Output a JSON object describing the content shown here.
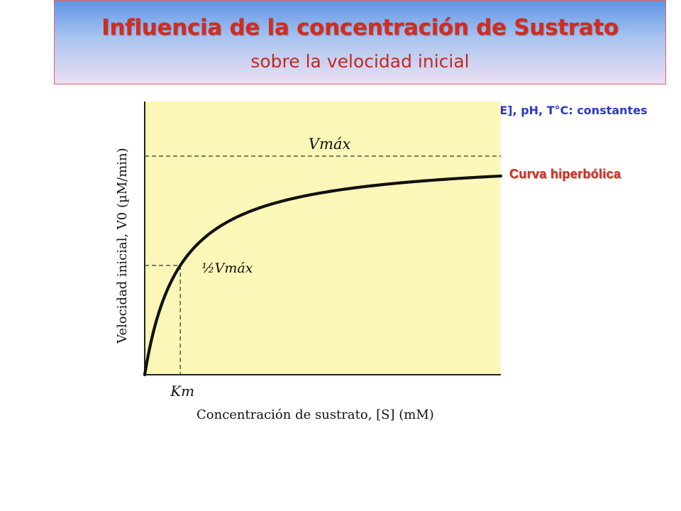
{
  "header": {
    "title": "Influencia de la concentración de Sustrato",
    "subtitle": "sobre la velocidad inicial"
  },
  "annotations": {
    "conditions": "[E], pH, T°C: constantes",
    "curve_label": "Curva hiperbólica"
  },
  "chart_data": {
    "type": "line",
    "title": "",
    "xlabel": "Concentración de sustrato, [S] (mM)",
    "ylabel": "Velocidad inicial, V0 (µM/min)",
    "xlim": [
      0,
      10
    ],
    "ylim": [
      0,
      1.25
    ],
    "grid": false,
    "model": "Michaelis-Menten",
    "vmax": 1,
    "km": 1,
    "vmax_label": "Vmáx",
    "half_vmax_label": "½Vmáx",
    "km_label": "Km",
    "series": [
      {
        "x": [
          0,
          0.25,
          0.5,
          1,
          1.5,
          2,
          3,
          4,
          5,
          6,
          7,
          8,
          9,
          10
        ],
        "values": [
          0,
          0.2,
          0.333,
          0.5,
          0.6,
          0.667,
          0.75,
          0.8,
          0.833,
          0.857,
          0.875,
          0.889,
          0.9,
          0.909
        ]
      }
    ],
    "colors": {
      "plot_background": "#fbf7b8",
      "curve": "#111111",
      "title": "#d32c1e",
      "conditions": "#2a38c8"
    }
  }
}
